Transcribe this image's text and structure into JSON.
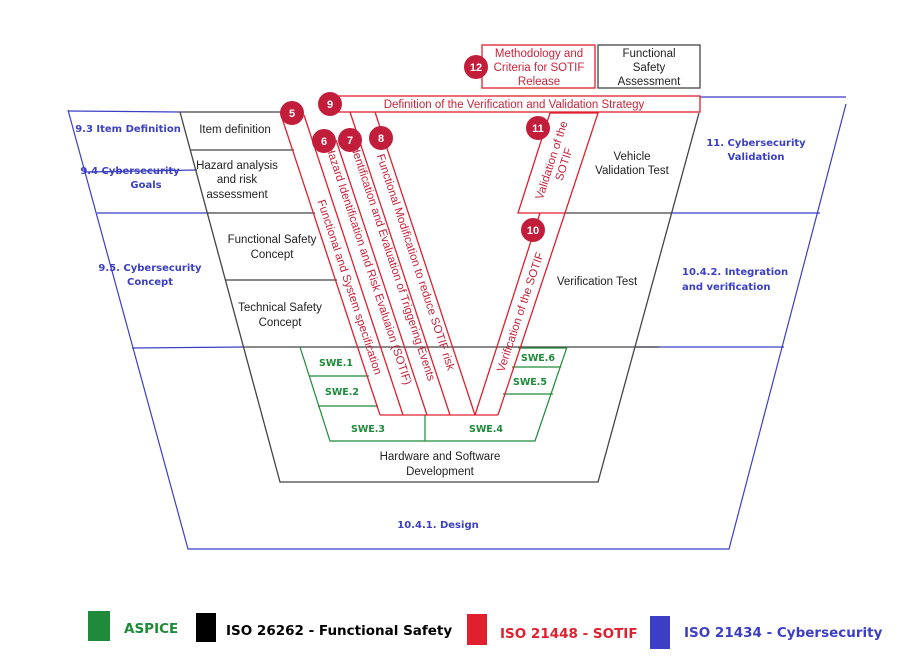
{
  "colors": {
    "aspice": "#1e8a3a",
    "iso26262": "#000000",
    "sotif": "#e0202e",
    "cybersecurity": "#3a3fc4",
    "sotif_badge": "#c21d3a"
  },
  "cybersecurity": {
    "item_definition": "9.3 Item Definition",
    "goals": [
      "9.4 Cybersecurity",
      "Goals"
    ],
    "concept": [
      "9.5. Cybersecurity",
      "Concept"
    ],
    "design": "10.4.1. Design",
    "validation": [
      "11. Cybersecurity",
      "Validation"
    ],
    "integration": [
      "10.4.2. Integration",
      "and verification"
    ]
  },
  "functional_safety": {
    "item_definition": "Item definition",
    "hazard_analysis": [
      "Hazard analysis",
      "and risk",
      "assessment"
    ],
    "fsc": [
      "Functional Safety",
      "Concept"
    ],
    "tsc": [
      "Technical Safety",
      "Concept"
    ],
    "vehicle_validation": [
      "Vehicle",
      "Validation Test"
    ],
    "verification_test": "Verification Test",
    "hw_sw": [
      "Hardware and Software",
      "Development"
    ],
    "fsa": [
      "Functional",
      "Safety",
      "Assessment"
    ]
  },
  "sotif": {
    "s5": {
      "num": "5",
      "label": "Functional and System specification"
    },
    "s6": {
      "num": "6",
      "label": "Hazard Identification and Risk Evaluaion (SOTIF)"
    },
    "s7": {
      "num": "7",
      "label": "Identification and Evaluation of Triggering Events"
    },
    "s8": {
      "num": "8",
      "label": "Functional Modification to reduce SOTIF risk"
    },
    "s9": {
      "num": "9",
      "label": "Definition of the Verification and Validation Strategy"
    },
    "s10": {
      "num": "10",
      "label": "Verification of the SOTIF"
    },
    "s11": {
      "num": "11",
      "label": [
        "Validation of the",
        "SOTIF"
      ]
    },
    "s12": {
      "num": "12",
      "label": [
        "Methodology and",
        "Criteria for SOTIF",
        "Release"
      ]
    }
  },
  "aspice": {
    "swe1": "SWE.1",
    "swe2": "SWE.2",
    "swe3": "SWE.3",
    "swe4": "SWE.4",
    "swe5": "SWE.5",
    "swe6": "SWE.6"
  },
  "legend": [
    {
      "label": "ASPICE"
    },
    {
      "label": "ISO 26262 - Functional  Safety"
    },
    {
      "label": "ISO 21448 - SOTIF"
    },
    {
      "label": "ISO 21434 - Cybersecurity"
    }
  ]
}
